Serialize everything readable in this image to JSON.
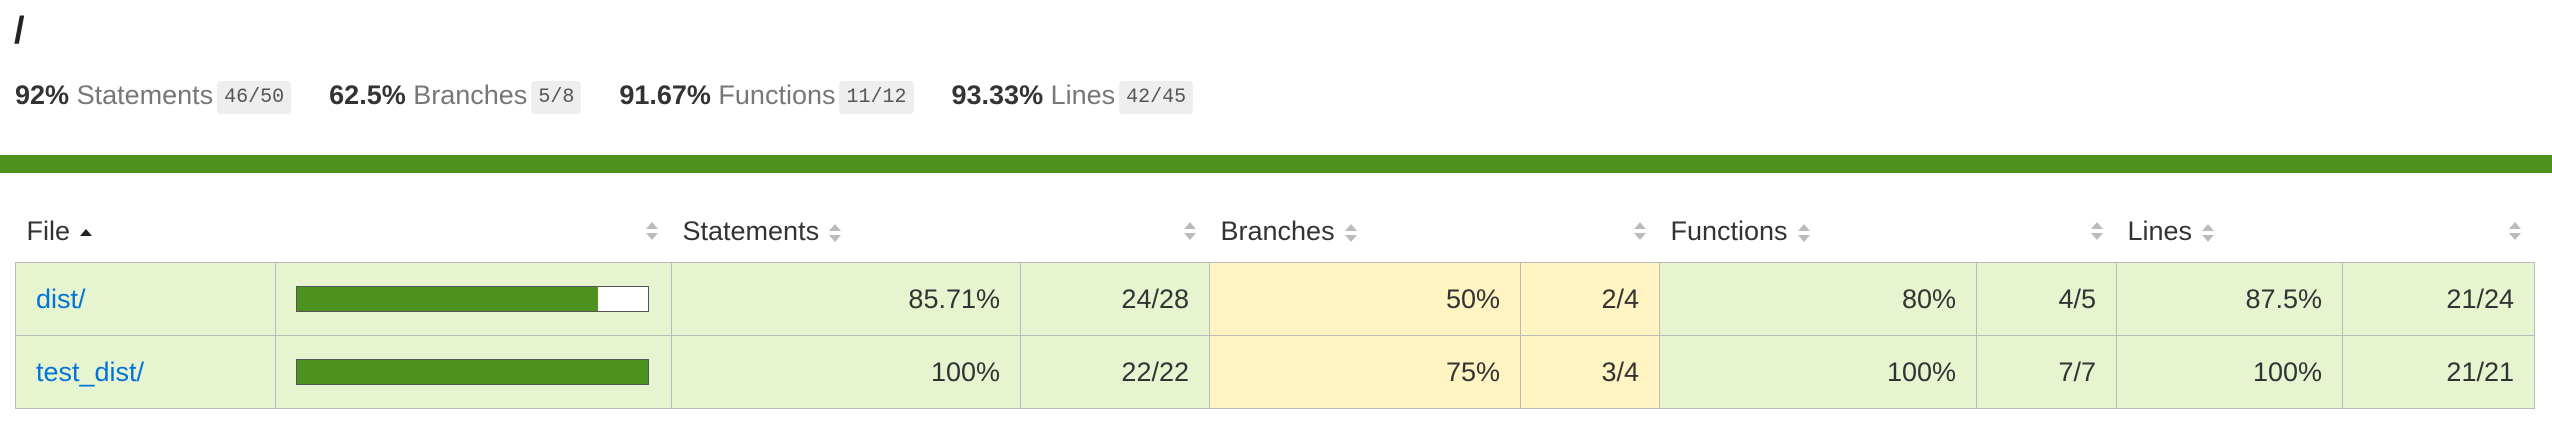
{
  "header": {
    "title": "/"
  },
  "summary": [
    {
      "pct": "92%",
      "label": "Statements",
      "fraction": "46/50"
    },
    {
      "pct": "62.5%",
      "label": "Branches",
      "fraction": "5/8"
    },
    {
      "pct": "91.67%",
      "label": "Functions",
      "fraction": "11/12"
    },
    {
      "pct": "93.33%",
      "label": "Lines",
      "fraction": "42/45"
    }
  ],
  "table": {
    "columns": [
      "File",
      "Statements",
      "Branches",
      "Functions",
      "Lines"
    ],
    "rows": [
      {
        "file": "dist/",
        "cells": [
          {
            "pct": "85.71%",
            "fraction": "24/28",
            "level": "high"
          },
          {
            "pct": "50%",
            "fraction": "2/4",
            "level": "medium"
          },
          {
            "pct": "80%",
            "fraction": "4/5",
            "level": "high"
          },
          {
            "pct": "87.5%",
            "fraction": "21/24",
            "level": "high"
          }
        ]
      },
      {
        "file": "test_dist/",
        "cells": [
          {
            "pct": "100%",
            "fraction": "22/22",
            "level": "high"
          },
          {
            "pct": "75%",
            "fraction": "3/4",
            "level": "medium"
          },
          {
            "pct": "100%",
            "fraction": "7/7",
            "level": "high"
          },
          {
            "pct": "100%",
            "fraction": "21/21",
            "level": "high"
          }
        ]
      }
    ]
  }
}
